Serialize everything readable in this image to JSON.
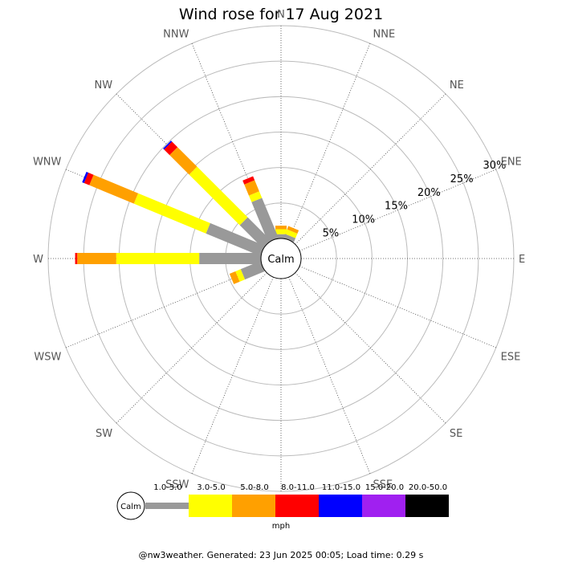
{
  "chart_data": {
    "type": "wind-rose",
    "title": "Wind rose for 17 Aug 2021",
    "directions": [
      "N",
      "NNE",
      "NE",
      "ENE",
      "E",
      "ESE",
      "SE",
      "SSE",
      "S",
      "SSW",
      "SW",
      "WSW",
      "W",
      "WNW",
      "NW",
      "NNW"
    ],
    "ring_labels": [
      "5%",
      "10%",
      "15%",
      "20%",
      "25%",
      "30%"
    ],
    "ring_values": [
      5,
      10,
      15,
      20,
      25,
      30
    ],
    "rmax": 30,
    "calm_label": "Calm",
    "speed_bins": [
      {
        "label": "1.0-3.0",
        "color": "#999999"
      },
      {
        "label": "3.0-5.0",
        "color": "#ffff00"
      },
      {
        "label": "5.0-8.0",
        "color": "#ffa000"
      },
      {
        "label": "8.0-11.0",
        "color": "#ff0000"
      },
      {
        "label": "11.0-15.0",
        "color": "#0000ff"
      },
      {
        "label": "15.0-20.0",
        "color": "#a020f0"
      },
      {
        "label": "20.0-50.0",
        "color": "#000000"
      }
    ],
    "unit": "mph",
    "series": [
      {
        "direction": "N",
        "cumulative": [
          0.6,
          1.3,
          1.8,
          1.8,
          1.8,
          1.8,
          1.8
        ]
      },
      {
        "direction": "NNE",
        "cumulative": [
          0.6,
          1.3,
          1.8,
          1.8,
          1.8,
          1.8,
          1.8
        ]
      },
      {
        "direction": "NW",
        "cumulative": [
          4.6,
          14.7,
          18.6,
          19.7,
          19.9,
          19.9,
          19.9
        ]
      },
      {
        "direction": "NNW",
        "cumulative": [
          6.1,
          7.1,
          8.8,
          9.4,
          9.4,
          9.4,
          9.4
        ]
      },
      {
        "direction": "WNW",
        "cumulative": [
          8.3,
          19.3,
          26.1,
          26.9,
          27.2,
          27.2,
          27.2
        ]
      },
      {
        "direction": "W",
        "cumulative": [
          8.7,
          20.4,
          25.9,
          26.2,
          26.2,
          26.2,
          26.2
        ]
      },
      {
        "direction": "WSW",
        "cumulative": [
          3.0,
          3.8,
          4.7,
          4.7,
          4.7,
          4.7,
          4.7
        ]
      }
    ]
  },
  "footer": "@nw3weather. Generated: 23 Jun 2025 00:05; Load time: 0.29 s"
}
